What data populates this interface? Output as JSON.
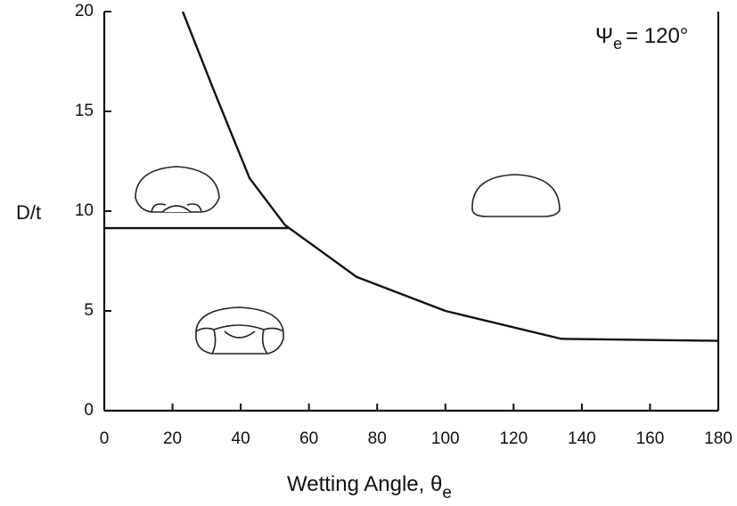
{
  "chart_data": {
    "type": "line",
    "xlabel": "Wetting Angle, θ",
    "xlabel_sub": "e",
    "ylabel": "D/t",
    "annotation": {
      "symbol": "Ψ",
      "sub": "e",
      "text": "= 120°"
    },
    "series": [
      {
        "color": "#111111",
        "x": [
          23,
          32,
          42.6,
          53,
          74,
          100,
          134,
          180
        ],
        "values": [
          20,
          16.1,
          11.65,
          9.3,
          6.7,
          5.0,
          3.6,
          3.5
        ]
      },
      {
        "color": "#111111",
        "x": [
          0,
          54
        ],
        "values": [
          9.15,
          9.15
        ]
      }
    ],
    "xlim": [
      0,
      180
    ],
    "xticks": [
      0,
      20,
      40,
      60,
      80,
      100,
      120,
      140,
      160,
      180
    ],
    "ylim": [
      0,
      20
    ],
    "yticks": [
      0,
      5,
      10,
      15,
      20
    ]
  }
}
